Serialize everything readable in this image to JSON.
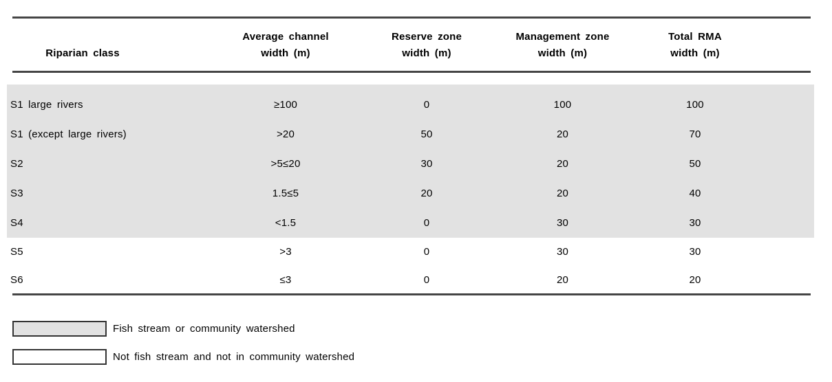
{
  "table": {
    "headers": [
      {
        "lines": [
          "Riparian class"
        ]
      },
      {
        "lines": [
          "Average channel",
          "width (m)"
        ]
      },
      {
        "lines": [
          "Reserve zone",
          "width (m)"
        ]
      },
      {
        "lines": [
          "Management zone",
          "width (m)"
        ]
      },
      {
        "lines": [
          "Total RMA",
          "width (m)"
        ]
      }
    ],
    "rows": [
      {
        "riparian_class": "S1 large rivers",
        "avg_channel_width": "≥100",
        "reserve_zone_width": "0",
        "management_zone_width": "100",
        "total_rma_width": "100",
        "shaded": true
      },
      {
        "riparian_class": "S1 (except large rivers)",
        "avg_channel_width": ">20",
        "reserve_zone_width": "50",
        "management_zone_width": "20",
        "total_rma_width": "70",
        "shaded": true
      },
      {
        "riparian_class": "S2",
        "avg_channel_width": ">5≤20",
        "reserve_zone_width": "30",
        "management_zone_width": "20",
        "total_rma_width": "50",
        "shaded": true
      },
      {
        "riparian_class": "S3",
        "avg_channel_width": "1.5≤5",
        "reserve_zone_width": "20",
        "management_zone_width": "20",
        "total_rma_width": "40",
        "shaded": true
      },
      {
        "riparian_class": "S4",
        "avg_channel_width": "<1.5",
        "reserve_zone_width": "0",
        "management_zone_width": "30",
        "total_rma_width": "30",
        "shaded": true
      },
      {
        "riparian_class": "S5",
        "avg_channel_width": ">3",
        "reserve_zone_width": "0",
        "management_zone_width": "30",
        "total_rma_width": "30",
        "shaded": false
      },
      {
        "riparian_class": "S6",
        "avg_channel_width": "≤3",
        "reserve_zone_width": "0",
        "management_zone_width": "20",
        "total_rma_width": "20",
        "shaded": false
      }
    ]
  },
  "legend": {
    "items": [
      {
        "swatch": "shaded",
        "label": "Fish stream or community watershed"
      },
      {
        "swatch": "unshaded",
        "label": "Not fish stream and not in community watershed"
      }
    ]
  },
  "colors": {
    "page_background": "#ffffff",
    "shaded_row": "#e2e2e2",
    "rule": "#454545",
    "text": "#000000",
    "swatch_border": "#333333"
  }
}
